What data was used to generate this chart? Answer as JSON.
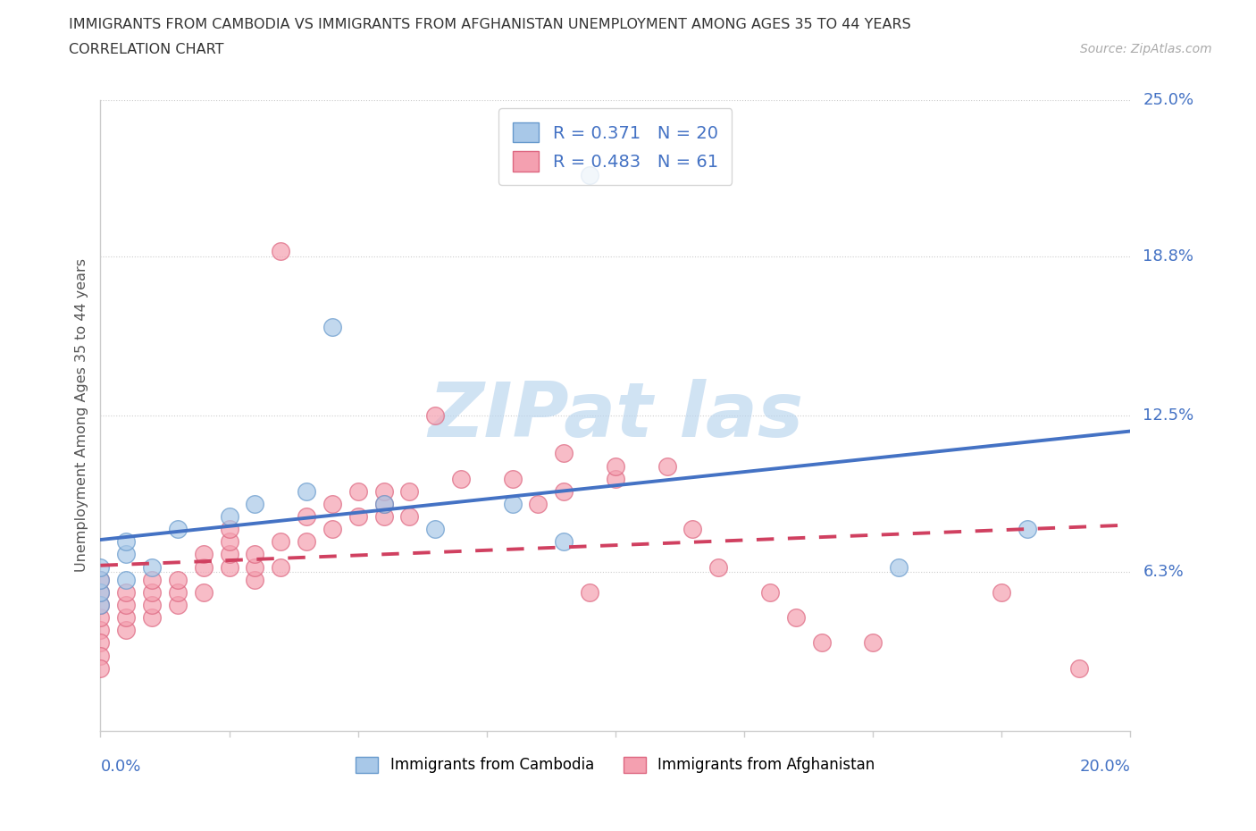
{
  "title_line1": "IMMIGRANTS FROM CAMBODIA VS IMMIGRANTS FROM AFGHANISTAN UNEMPLOYMENT AMONG AGES 35 TO 44 YEARS",
  "title_line2": "CORRELATION CHART",
  "source_text": "Source: ZipAtlas.com",
  "ylabel": "Unemployment Among Ages 35 to 44 years",
  "xlim": [
    0.0,
    0.2
  ],
  "ylim": [
    0.0,
    0.25
  ],
  "ytick_values": [
    0.063,
    0.125,
    0.188,
    0.25
  ],
  "ytick_labels": [
    "6.3%",
    "12.5%",
    "18.8%",
    "25.0%"
  ],
  "xtick_count": 9,
  "cambodia_color": "#a8c8e8",
  "cambodia_edge_color": "#6699cc",
  "afghanistan_color": "#f4a0b0",
  "afghanistan_edge_color": "#dd6680",
  "cambodia_line_color": "#4472c4",
  "afghanistan_line_color": "#d04060",
  "legend_text_color": "#4472c4",
  "legend_text_dark": "#333333",
  "cambodia_R": 0.371,
  "cambodia_N": 20,
  "afghanistan_R": 0.483,
  "afghanistan_N": 61,
  "watermark_text": "ZIPat las",
  "watermark_color": "#b8d4ee",
  "label_cambodia": "Immigrants from Cambodia",
  "label_afghanistan": "Immigrants from Afghanistan",
  "cam_x": [
    0.005,
    0.005,
    0.01,
    0.005,
    0.0,
    0.0,
    0.0,
    0.0,
    0.015,
    0.025,
    0.03,
    0.04,
    0.045,
    0.055,
    0.065,
    0.08,
    0.09,
    0.095,
    0.155,
    0.18
  ],
  "cam_y": [
    0.06,
    0.07,
    0.065,
    0.075,
    0.05,
    0.055,
    0.06,
    0.065,
    0.08,
    0.085,
    0.09,
    0.095,
    0.16,
    0.09,
    0.08,
    0.09,
    0.075,
    0.22,
    0.065,
    0.08
  ],
  "afg_x": [
    0.0,
    0.0,
    0.0,
    0.0,
    0.0,
    0.0,
    0.0,
    0.0,
    0.005,
    0.005,
    0.005,
    0.005,
    0.01,
    0.01,
    0.01,
    0.01,
    0.015,
    0.015,
    0.015,
    0.02,
    0.02,
    0.02,
    0.025,
    0.025,
    0.025,
    0.025,
    0.03,
    0.03,
    0.03,
    0.035,
    0.035,
    0.035,
    0.04,
    0.04,
    0.045,
    0.045,
    0.05,
    0.05,
    0.055,
    0.055,
    0.055,
    0.06,
    0.06,
    0.065,
    0.07,
    0.08,
    0.085,
    0.09,
    0.09,
    0.095,
    0.1,
    0.1,
    0.11,
    0.115,
    0.12,
    0.13,
    0.135,
    0.14,
    0.15,
    0.175,
    0.19
  ],
  "afg_y": [
    0.04,
    0.045,
    0.05,
    0.055,
    0.06,
    0.035,
    0.03,
    0.025,
    0.04,
    0.045,
    0.05,
    0.055,
    0.045,
    0.05,
    0.055,
    0.06,
    0.05,
    0.055,
    0.06,
    0.055,
    0.065,
    0.07,
    0.065,
    0.07,
    0.075,
    0.08,
    0.06,
    0.065,
    0.07,
    0.065,
    0.075,
    0.19,
    0.075,
    0.085,
    0.08,
    0.09,
    0.085,
    0.095,
    0.085,
    0.09,
    0.095,
    0.085,
    0.095,
    0.125,
    0.1,
    0.1,
    0.09,
    0.095,
    0.11,
    0.055,
    0.1,
    0.105,
    0.105,
    0.08,
    0.065,
    0.055,
    0.045,
    0.035,
    0.035,
    0.055,
    0.025
  ]
}
